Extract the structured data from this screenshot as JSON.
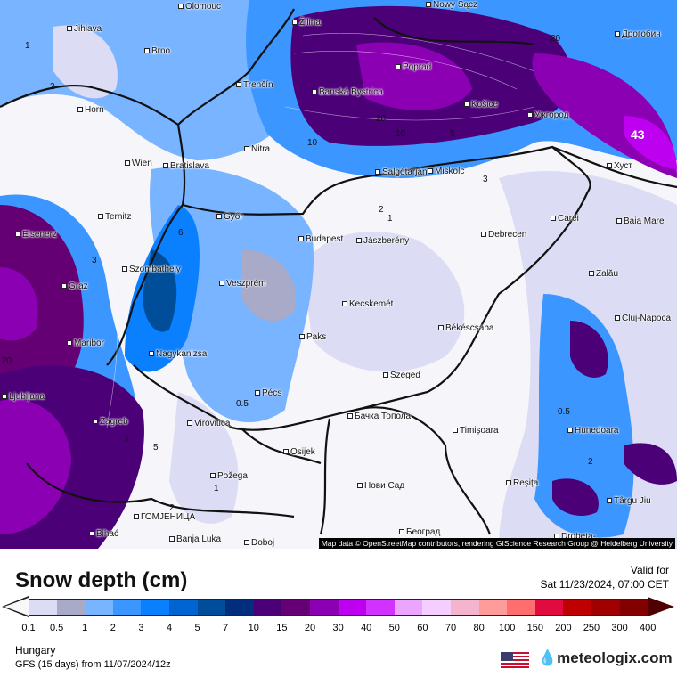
{
  "map": {
    "cities": [
      "Olomouc",
      "Jihlava",
      "Brno",
      "Trenčín",
      "Žilina",
      "Nowy Sącz",
      "Дрогобич",
      "Poprad",
      "Banská Bystrica",
      "Košice",
      "Ужгород",
      "Horn",
      "Wien",
      "Bratislava",
      "Nitra",
      "Salgótarján",
      "Miskolc",
      "Хуст",
      "Eisenerz",
      "Ternitz",
      "Győr",
      "Budapest",
      "Jászberény",
      "Debrecen",
      "Carei",
      "Baia Mare",
      "Szombathely",
      "Graz",
      "Veszprém",
      "Kecskemét",
      "Zalău",
      "Cluj-Napoca",
      "Maribor",
      "Nagykanizsa",
      "Paks",
      "Békéscsaba",
      "Ljubljana",
      "Szeged",
      "Pécs",
      "Zagreb",
      "Virovitica",
      "Бачка Топола",
      "Timișoara",
      "Hunedoara",
      "Osijek",
      "Požega",
      "Нови Сад",
      "Reșița",
      "Târgu Jiu",
      "ГОМЈЕНИЦА",
      "Banja Luka",
      "Bihać",
      "Doboj",
      "Београд",
      "Drobeta-"
    ],
    "contour_labels": [
      "43",
      "20",
      "20",
      "10",
      "5",
      "3",
      "2",
      "1",
      "1",
      "2",
      "3",
      "6",
      "5",
      "0.5",
      "0.5",
      "2",
      "1",
      "10",
      "20",
      "7",
      "2"
    ],
    "attribution": "Map data © OpenStreetMap contributors, rendering GIScience Research Group @ Heidelberg University"
  },
  "legend": {
    "title": "Snow depth (cm)",
    "valid_label": "Valid for",
    "valid_time": "Sat 11/23/2024, 07:00 CET",
    "ticks": [
      "0.1",
      "0.5",
      "1",
      "2",
      "3",
      "4",
      "5",
      "7",
      "10",
      "15",
      "20",
      "30",
      "40",
      "50",
      "60",
      "70",
      "80",
      "100",
      "150",
      "200",
      "250",
      "300",
      "400"
    ],
    "colors": [
      "#dcdcf5",
      "#a9a9c8",
      "#78b4ff",
      "#3c96ff",
      "#0a80ff",
      "#0064d2",
      "#004e9a",
      "#002d7c",
      "#4b0078",
      "#640073",
      "#8c00b4",
      "#be00f0",
      "#d232ff",
      "#eba5ff",
      "#f5cdff",
      "#f5b4cd",
      "#ff9b9b",
      "#ff6e6e",
      "#e10a41",
      "#be0000",
      "#a00000",
      "#820000"
    ],
    "low_color": "#f8f8f8",
    "high_color": "#500000"
  },
  "footer": {
    "region": "Hungary",
    "model": "GFS (15 days) from  11/07/2024/12z",
    "brand": "meteologix.com"
  }
}
